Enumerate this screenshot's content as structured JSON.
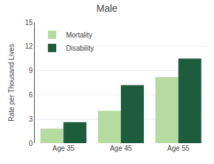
{
  "chart_data": {
    "type": "bar",
    "title": "Male",
    "ylabel": "Rate per Thousand Lives",
    "categories": [
      "Age 35",
      "Age 45",
      "Age 55"
    ],
    "series": [
      {
        "name": "Mortality",
        "color": "#b5dba0",
        "values": [
          1.8,
          4.0,
          8.2
        ]
      },
      {
        "name": "Disability",
        "color": "#1e5c3e",
        "values": [
          2.6,
          7.2,
          10.5
        ]
      }
    ],
    "ylim": [
      0,
      15
    ],
    "yticks": [
      0,
      3,
      6,
      9,
      12,
      15
    ],
    "grid": true,
    "legend": "upper left"
  }
}
